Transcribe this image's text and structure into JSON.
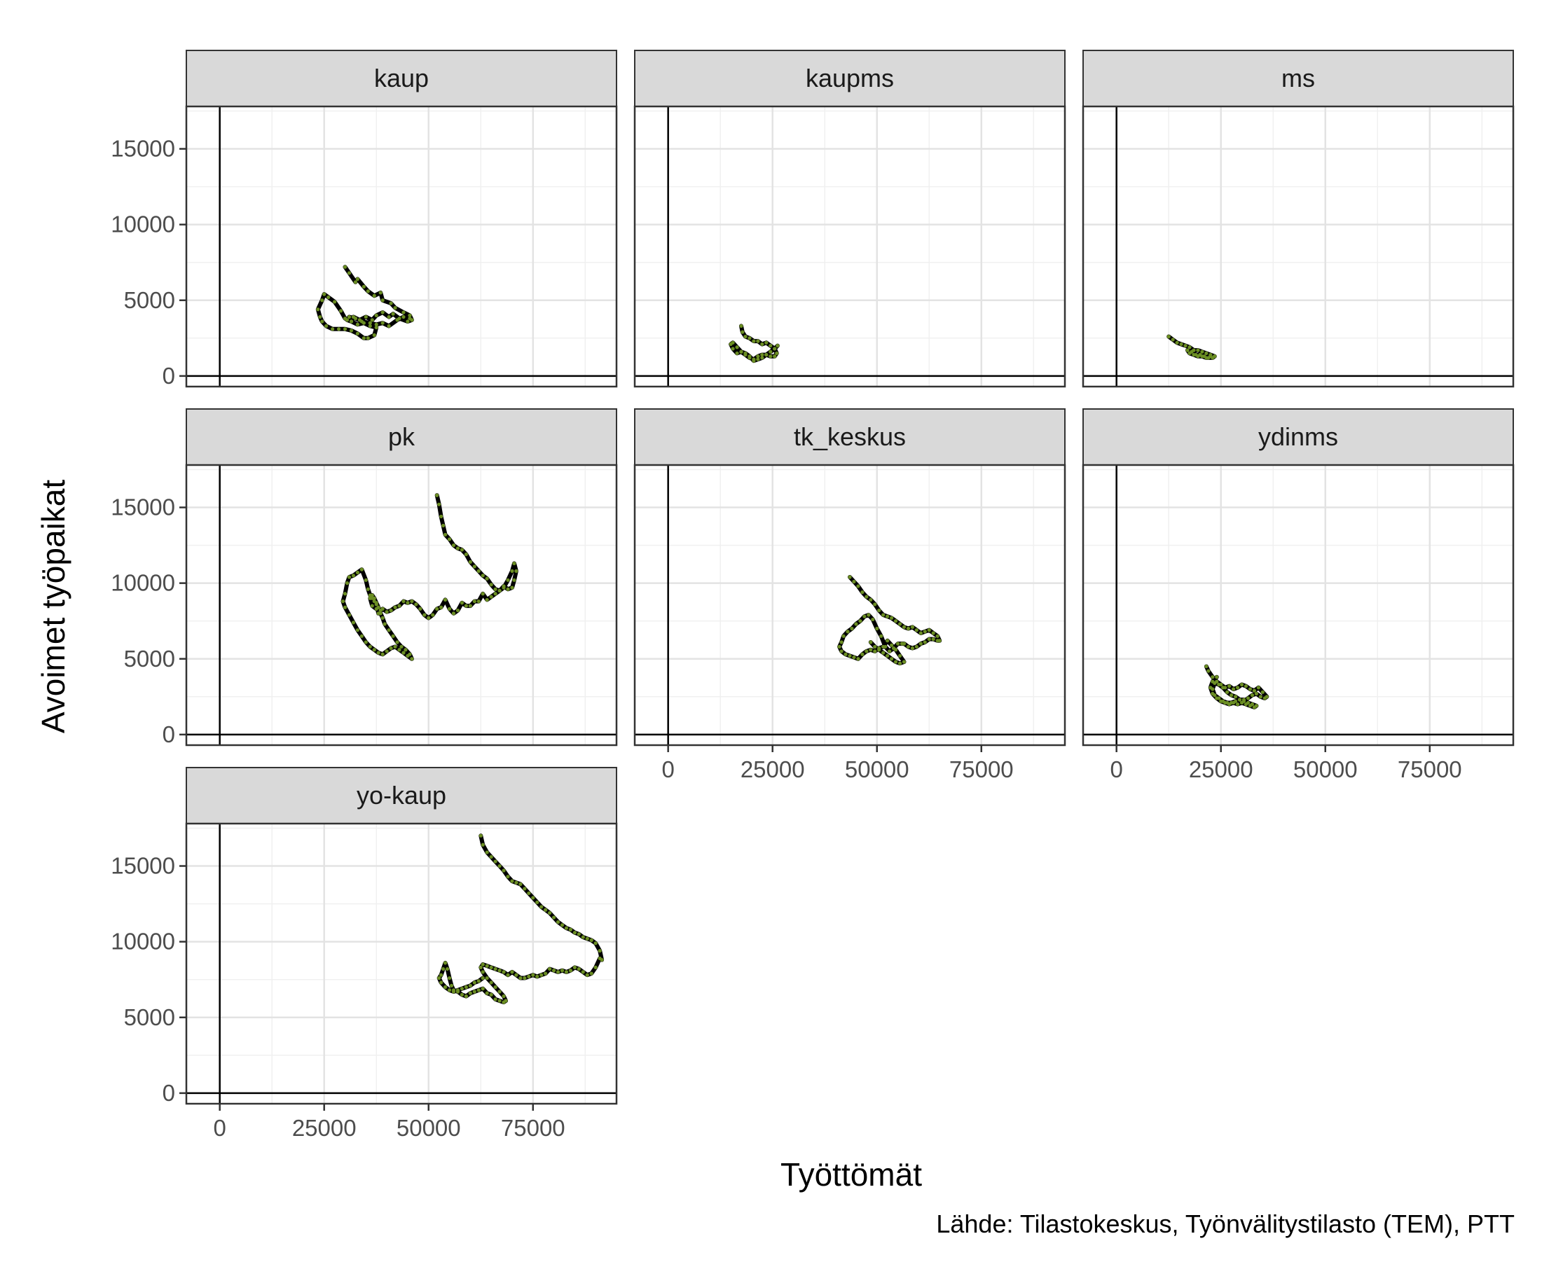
{
  "chart_data": {
    "type": "line",
    "facet_layout": {
      "ncol": 3,
      "nrow": 3
    },
    "xlabel": "Työttömät",
    "ylabel": "Avoimet työpaikat",
    "caption": "Lähde: Tilastokeskus, Työnvälitystilasto (TEM), PTT",
    "xlim": [
      -8000,
      95000
    ],
    "ylim": [
      -700,
      17800
    ],
    "x_ticks": [
      0,
      25000,
      50000,
      75000
    ],
    "y_ticks": [
      0,
      5000,
      10000,
      15000
    ],
    "reference_lines": {
      "x": 0,
      "y": 0
    },
    "grid": true,
    "line_color": "#000000",
    "point_color": "#6b8e23",
    "panels": [
      {
        "name": "kaup",
        "x": [
          30000,
          31000,
          32500,
          33000,
          34500,
          35500,
          37000,
          38500,
          39000,
          41000,
          42000,
          44000,
          45500,
          46000,
          45000,
          43000,
          41500,
          40500,
          39000,
          37500,
          36500,
          35000,
          33500,
          32000,
          31500,
          30000,
          29000,
          27500,
          26000,
          25000,
          24500,
          23500,
          24000,
          24500,
          25500,
          27000,
          28500,
          30000,
          31500,
          33000,
          34500,
          35500,
          37000,
          37500,
          36000,
          34500,
          33000,
          31500,
          30500,
          31000,
          32500,
          34000,
          36000,
          37500,
          39000,
          40500,
          42500,
          44000,
          45500
        ],
        "y": [
          7200,
          6800,
          6200,
          6400,
          5900,
          5600,
          5300,
          5500,
          5000,
          4800,
          4500,
          4200,
          4000,
          3700,
          3600,
          3800,
          4100,
          3900,
          4200,
          4000,
          3700,
          3900,
          3700,
          3900,
          3600,
          3800,
          4300,
          4900,
          5200,
          5400,
          5000,
          4400,
          3900,
          3600,
          3300,
          3100,
          3100,
          3100,
          3000,
          2800,
          2500,
          2500,
          2700,
          3200,
          3300,
          3500,
          3400,
          3600,
          3700,
          3900,
          3800,
          3600,
          3500,
          3400,
          3500,
          3300,
          3700,
          3900,
          3800
        ]
      },
      {
        "name": "kaupms",
        "x": [
          17500,
          17800,
          18500,
          19500,
          20500,
          21500,
          22500,
          23500,
          24500,
          25500,
          26000,
          25500,
          24500,
          23500,
          22500,
          21500,
          20500,
          19500,
          18500,
          17500,
          16500,
          15500,
          15000,
          15500,
          16500,
          17500,
          18500,
          19500,
          20500,
          21500,
          22500,
          23500,
          24500,
          25500,
          26200
        ],
        "y": [
          3300,
          2900,
          2600,
          2500,
          2300,
          2300,
          2100,
          2200,
          2000,
          1800,
          1500,
          1300,
          1300,
          1400,
          1200,
          1100,
          1000,
          1300,
          1500,
          1600,
          1500,
          1800,
          2100,
          2200,
          1900,
          1600,
          1400,
          1200,
          1100,
          1300,
          1400,
          1400,
          1600,
          1800,
          2000
        ]
      },
      {
        "name": "ms",
        "x": [
          12500,
          13500,
          14500,
          15500,
          16500,
          17500,
          18500,
          19500,
          20500,
          21500,
          22500,
          23500,
          23000,
          22000,
          21000,
          20000,
          19000,
          18000,
          17000,
          17500,
          18500,
          19500,
          20500,
          21500,
          22500,
          23500
        ],
        "y": [
          2600,
          2400,
          2200,
          2100,
          2000,
          1900,
          1700,
          1700,
          1600,
          1500,
          1400,
          1300,
          1200,
          1200,
          1300,
          1400,
          1400,
          1600,
          1700,
          1500,
          1400,
          1300,
          1300,
          1200,
          1300,
          1300
        ]
      },
      {
        "name": "pk",
        "x": [
          52000,
          52500,
          53000,
          53500,
          54000,
          55000,
          56000,
          57000,
          58000,
          59000,
          60000,
          61000,
          62000,
          63000,
          64000,
          65000,
          66000,
          67000,
          68000,
          69000,
          70000,
          70500,
          71000,
          70500,
          70000,
          69000,
          68000,
          67000,
          66000,
          65000,
          64000,
          63000,
          62000,
          61000,
          60000,
          59000,
          58000,
          57000,
          56000,
          55000,
          54000,
          53000,
          52000,
          51000,
          50000,
          49000,
          48000,
          47000,
          46000,
          45000,
          44000,
          43000,
          42000,
          41000,
          40000,
          39000,
          38000,
          37500,
          37000,
          36500,
          36000,
          35500,
          35000,
          34000,
          33000,
          32000,
          31000,
          30500,
          30000,
          29500,
          30000,
          31000,
          32000,
          33000,
          34000,
          35000,
          36000,
          37000,
          38000,
          39000,
          40000,
          41000,
          42000,
          43000,
          44000,
          45000,
          46000,
          45500,
          44500,
          43500,
          42500,
          41500,
          40500,
          39500,
          39000,
          38500,
          38000,
          37500,
          37000,
          36500,
          36000,
          36500,
          37500,
          38500
        ],
        "y": [
          15800,
          15200,
          14400,
          13800,
          13200,
          12900,
          12500,
          12300,
          12200,
          11900,
          11400,
          11100,
          10800,
          10500,
          10300,
          9900,
          9600,
          9500,
          9700,
          10200,
          10800,
          11300,
          10800,
          10200,
          9700,
          9600,
          9800,
          9500,
          9300,
          9100,
          8900,
          9300,
          8800,
          8800,
          8500,
          8500,
          8700,
          8200,
          8000,
          8300,
          8900,
          8400,
          8300,
          7900,
          7700,
          7900,
          8300,
          8600,
          8800,
          8700,
          8800,
          8500,
          8400,
          8200,
          8100,
          8300,
          8000,
          8600,
          8800,
          9000,
          9200,
          9600,
          10200,
          10900,
          10700,
          10500,
          10400,
          10000,
          9300,
          8800,
          8400,
          7900,
          7400,
          6900,
          6500,
          6100,
          5800,
          5600,
          5400,
          5300,
          5500,
          5700,
          5800,
          5600,
          5400,
          5200,
          5000,
          5300,
          5600,
          5800,
          6100,
          6500,
          6900,
          7300,
          7700,
          8000,
          8400,
          8700,
          9000,
          9200,
          9000,
          8500,
          8300,
          8200
        ]
      },
      {
        "name": "tk_keskus",
        "x": [
          43500,
          44500,
          45500,
          46500,
          47500,
          48500,
          49500,
          50500,
          51500,
          52500,
          53500,
          54500,
          55500,
          56500,
          57500,
          58500,
          59500,
          60500,
          61500,
          62500,
          63500,
          64500,
          65000,
          64500,
          63500,
          62500,
          61500,
          60500,
          59500,
          58500,
          57500,
          56500,
          56000,
          55000,
          54000,
          53000,
          52000,
          51000,
          50000,
          49000,
          48000,
          47000,
          46000,
          45000,
          44000,
          43000,
          42000,
          41500,
          41000,
          41500,
          42500,
          43500,
          44500,
          45500,
          46500,
          47500,
          48500,
          49500,
          50500,
          51500,
          52500,
          53500,
          54500,
          55500,
          56500,
          55500,
          54500,
          53500,
          52500,
          51500,
          50500,
          49500,
          48500
        ],
        "y": [
          10400,
          10100,
          9800,
          9400,
          9100,
          8900,
          8600,
          8200,
          7900,
          7800,
          7700,
          7500,
          7300,
          7100,
          7000,
          7100,
          6900,
          6700,
          6800,
          6900,
          6700,
          6500,
          6200,
          6200,
          6300,
          6300,
          6100,
          6000,
          5800,
          5700,
          5800,
          6000,
          6000,
          6000,
          5700,
          5500,
          5800,
          6500,
          7000,
          7600,
          7900,
          7800,
          7500,
          7300,
          7000,
          6800,
          6500,
          6100,
          5800,
          5500,
          5300,
          5200,
          5100,
          5000,
          5300,
          5500,
          5600,
          5500,
          5700,
          5800,
          6200,
          5900,
          5600,
          5200,
          4800,
          4700,
          4800,
          5000,
          5200,
          5400,
          5600,
          5800,
          6100
        ]
      },
      {
        "name": "ydinms",
        "x": [
          21500,
          22000,
          23000,
          24000,
          25000,
          26000,
          27000,
          28000,
          29000,
          30000,
          31000,
          32000,
          33000,
          34000,
          35000,
          36000,
          35500,
          34500,
          33500,
          32500,
          31500,
          30500,
          29500,
          28500,
          27500,
          26500,
          25500,
          24500,
          23500,
          23000,
          23500,
          24500,
          25500,
          26500,
          27500,
          28500,
          29500,
          30500,
          31500,
          32500,
          33500,
          33000,
          32000,
          31000,
          30000,
          29000,
          28000,
          27000,
          26000,
          25000,
          24000,
          23000,
          22500,
          23000,
          24000
        ],
        "y": [
          4500,
          4200,
          3800,
          3500,
          3300,
          3100,
          3200,
          3000,
          3100,
          3300,
          3200,
          3000,
          2900,
          3100,
          2800,
          2500,
          2400,
          2500,
          2700,
          2600,
          2400,
          2200,
          2300,
          2200,
          2100,
          2100,
          2200,
          2400,
          2600,
          3000,
          3400,
          3300,
          3100,
          2800,
          2600,
          2500,
          2300,
          2300,
          2100,
          2000,
          1900,
          1800,
          1900,
          2000,
          2100,
          2000,
          2100,
          2000,
          2100,
          2200,
          2400,
          2700,
          3100,
          3500,
          3800
        ]
      },
      {
        "name": "yo-kaup",
        "x": [
          62500,
          63000,
          64000,
          65000,
          66000,
          67000,
          68000,
          69000,
          70000,
          71000,
          72000,
          73000,
          74000,
          75000,
          76000,
          77000,
          78000,
          79000,
          80000,
          81000,
          82000,
          83000,
          84000,
          85000,
          86000,
          87000,
          88000,
          89000,
          90000,
          91000,
          91500,
          91000,
          90000,
          89000,
          88000,
          87000,
          86000,
          85000,
          84000,
          83000,
          82000,
          81000,
          80000,
          79000,
          78000,
          77000,
          76000,
          75000,
          74000,
          73000,
          72000,
          71000,
          70000,
          69000,
          68000,
          67000,
          66000,
          65000,
          64000,
          63000,
          62500,
          63000,
          64000,
          65000,
          66000,
          67000,
          68000,
          68500,
          68000,
          67000,
          66000,
          65000,
          64000,
          63000,
          62000,
          61000,
          60000,
          59000,
          58000,
          57000,
          56000,
          55500,
          55000,
          54500,
          54000,
          53500,
          53000,
          52500,
          53000,
          54000,
          55000,
          56000,
          57000,
          58000,
          59000,
          60000,
          61000,
          62000,
          63000
        ],
        "y": [
          17000,
          16400,
          15900,
          15600,
          15300,
          15000,
          14700,
          14300,
          14000,
          13900,
          13800,
          13500,
          13200,
          12900,
          12600,
          12300,
          12100,
          11900,
          11600,
          11300,
          11100,
          10900,
          10800,
          10600,
          10500,
          10300,
          10200,
          10100,
          9900,
          9400,
          8800,
          8900,
          8300,
          7900,
          7800,
          8000,
          8200,
          8300,
          8100,
          8000,
          8100,
          8000,
          8100,
          8200,
          7900,
          7800,
          7700,
          7800,
          7700,
          7600,
          7600,
          7800,
          8000,
          7800,
          8000,
          8100,
          8200,
          8300,
          8400,
          8500,
          8300,
          8000,
          7600,
          7300,
          7000,
          6700,
          6400,
          6100,
          6000,
          6100,
          6200,
          6500,
          6600,
          6900,
          6800,
          6700,
          6600,
          6400,
          6500,
          6700,
          6800,
          7100,
          7600,
          8200,
          8600,
          8200,
          7800,
          7600,
          7300,
          7000,
          6800,
          6700,
          6800,
          6900,
          7000,
          7100,
          7300,
          7400,
          7600
        ]
      }
    ]
  }
}
